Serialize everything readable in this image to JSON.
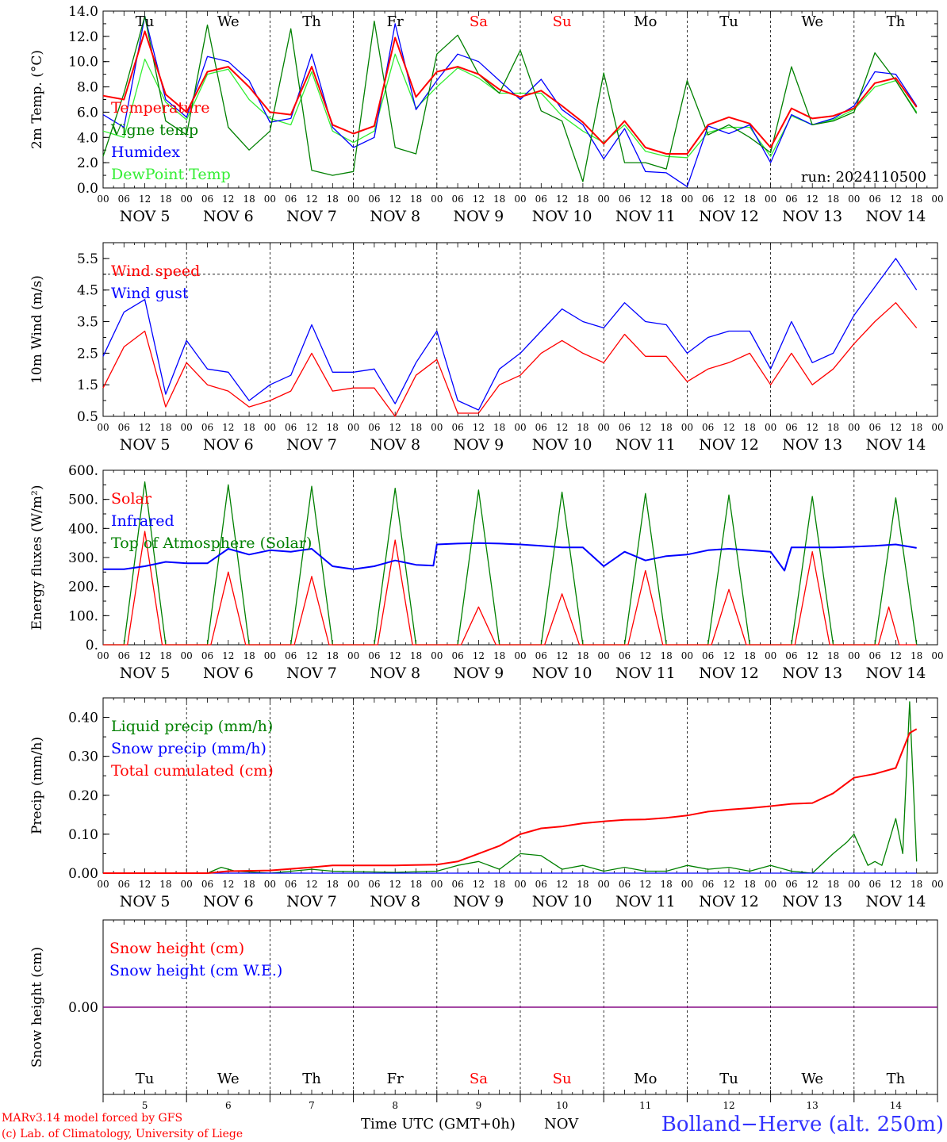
{
  "day_names": [
    {
      "label": "Tu",
      "color": "#000000"
    },
    {
      "label": "We",
      "color": "#000000"
    },
    {
      "label": "Th",
      "color": "#000000"
    },
    {
      "label": "Fr",
      "color": "#000000"
    },
    {
      "label": "Sa",
      "color": "#ff0000"
    },
    {
      "label": "Su",
      "color": "#ff0000"
    },
    {
      "label": "Mo",
      "color": "#000000"
    },
    {
      "label": "Tu",
      "color": "#000000"
    },
    {
      "label": "We",
      "color": "#000000"
    },
    {
      "label": "Th",
      "color": "#000000"
    }
  ],
  "date_labels": [
    "NOV  5",
    "NOV  6",
    "NOV  7",
    "NOV  8",
    "NOV  9",
    "NOV 10",
    "NOV 11",
    "NOV 12",
    "NOV 13",
    "NOV 14"
  ],
  "hour_labels": [
    "00",
    "06",
    "12",
    "18"
  ],
  "day_numbers": [
    "5",
    "6",
    "7",
    "8",
    "9",
    "10",
    "11",
    "12",
    "13",
    "14"
  ],
  "footer": {
    "model_line": "MARv3.14 model forced by GFS",
    "credit_line": "(c) Lab. of Climatology, University of Liege",
    "xaxis_label": "Time UTC (GMT+0h)",
    "month": "NOV",
    "station": "Bolland−Herve (alt. 250m)"
  },
  "colors": {
    "red": "#ff0000",
    "green": "#008000",
    "blue": "#0000ff",
    "lightgreen": "#33ee33",
    "purple": "#800080",
    "grid": "#000000"
  },
  "chart_data": [
    {
      "type": "line",
      "ylabel": "2m Temp. (°C)",
      "ylim": [
        0,
        14
      ],
      "yticks": [
        "0.0",
        "2.0",
        "4.0",
        "6.0",
        "8.0",
        "10.0",
        "12.0",
        "14.0"
      ],
      "x_unit": "hours since NOV 5 00 UTC",
      "annotation": "run: 2024110500",
      "legend_position": "top-left",
      "series": [
        {
          "name": "Temperature",
          "color": "#ff0000",
          "x": [
            0,
            6,
            12,
            18,
            24,
            30,
            36,
            42,
            48,
            54,
            60,
            66,
            72,
            78,
            84,
            90,
            96,
            102,
            108,
            114,
            120,
            126,
            132,
            138,
            144,
            150,
            156,
            162,
            168,
            174,
            180,
            186,
            192,
            198,
            204,
            210,
            216,
            222,
            228,
            234
          ],
          "y": [
            7.3,
            7.0,
            12.4,
            7.4,
            6.0,
            9.2,
            9.6,
            8.0,
            6.0,
            5.8,
            9.6,
            5.0,
            4.3,
            4.9,
            11.9,
            7.2,
            9.2,
            9.6,
            9.0,
            7.8,
            7.2,
            7.7,
            6.5,
            5.2,
            3.5,
            5.3,
            3.2,
            2.7,
            2.7,
            5.0,
            5.6,
            5.1,
            3.2,
            6.3,
            5.5,
            5.7,
            6.3,
            8.3,
            8.7,
            6.4
          ]
        },
        {
          "name": "Vigne temp",
          "color": "#008000",
          "x": [
            0,
            6,
            12,
            18,
            24,
            30,
            36,
            42,
            48,
            54,
            60,
            66,
            72,
            78,
            84,
            90,
            96,
            102,
            108,
            114,
            120,
            126,
            132,
            138,
            144,
            150,
            156,
            162,
            168,
            174,
            180,
            186,
            192,
            198,
            204,
            210,
            216,
            222,
            228,
            234
          ],
          "y": [
            2.5,
            7.5,
            13.6,
            5.3,
            4.2,
            12.9,
            4.8,
            3.0,
            4.5,
            12.6,
            1.4,
            1.0,
            1.3,
            13.2,
            3.2,
            2.7,
            10.6,
            12.1,
            9.0,
            7.5,
            10.9,
            6.1,
            5.3,
            0.5,
            9.1,
            2.0,
            2.0,
            1.5,
            8.5,
            4.2,
            5.0,
            4.0,
            2.8,
            9.6,
            5.0,
            5.3,
            6.0,
            10.7,
            8.5,
            5.9
          ]
        },
        {
          "name": "Humidex",
          "color": "#0000ff",
          "x": [
            0,
            6,
            12,
            18,
            24,
            30,
            36,
            42,
            48,
            54,
            60,
            66,
            72,
            78,
            84,
            90,
            96,
            102,
            108,
            114,
            120,
            126,
            132,
            138,
            144,
            150,
            156,
            162,
            168,
            174,
            180,
            186,
            192,
            198,
            204,
            210,
            216,
            222,
            228,
            234
          ],
          "y": [
            5.8,
            4.8,
            13.6,
            7.0,
            5.6,
            10.4,
            10.0,
            8.5,
            5.2,
            5.5,
            10.6,
            4.8,
            3.2,
            4.0,
            13.0,
            6.2,
            8.5,
            10.6,
            10.0,
            8.5,
            7.0,
            8.6,
            6.2,
            5.0,
            2.3,
            4.7,
            1.3,
            1.2,
            0.1,
            4.9,
            4.3,
            5.0,
            2.0,
            5.8,
            5.0,
            5.5,
            6.5,
            9.2,
            9.0,
            6.5
          ]
        },
        {
          "name": "DewPoint Temp",
          "color": "#33ee33",
          "x": [
            0,
            6,
            12,
            18,
            24,
            30,
            36,
            42,
            48,
            54,
            60,
            66,
            72,
            78,
            84,
            90,
            96,
            102,
            108,
            114,
            120,
            126,
            132,
            138,
            144,
            150,
            156,
            162,
            168,
            174,
            180,
            186,
            192,
            198,
            204,
            210,
            216,
            222,
            228,
            234
          ],
          "y": [
            4.5,
            4.0,
            10.2,
            6.8,
            5.4,
            9.0,
            9.4,
            7.0,
            5.5,
            5.0,
            9.2,
            4.5,
            3.6,
            4.5,
            10.6,
            6.3,
            8.0,
            9.5,
            8.7,
            7.5,
            7.5,
            7.5,
            5.7,
            4.5,
            3.6,
            5.0,
            2.9,
            2.5,
            2.4,
            4.4,
            4.8,
            4.8,
            2.5,
            5.7,
            5.0,
            5.4,
            6.2,
            8.0,
            8.5,
            6.0
          ]
        }
      ]
    },
    {
      "type": "line",
      "ylabel": "10m Wind (m/s)",
      "ylim": [
        0.5,
        6.0
      ],
      "yticks": [
        "0.5",
        "1.5",
        "2.5",
        "3.5",
        "4.5",
        "5.5"
      ],
      "x_unit": "hours since NOV 5 00 UTC",
      "reference_line": 5.0,
      "legend_position": "top-left",
      "series": [
        {
          "name": "Wind speed",
          "color": "#ff0000",
          "x": [
            0,
            6,
            12,
            18,
            24,
            30,
            36,
            42,
            48,
            54,
            60,
            66,
            72,
            78,
            84,
            90,
            96,
            102,
            108,
            114,
            120,
            126,
            132,
            138,
            144,
            150,
            156,
            162,
            168,
            174,
            180,
            186,
            192,
            198,
            204,
            210,
            216,
            222,
            228,
            234
          ],
          "y": [
            1.4,
            2.7,
            3.2,
            0.8,
            2.2,
            1.5,
            1.3,
            0.8,
            1.0,
            1.3,
            2.5,
            1.3,
            1.4,
            1.4,
            0.5,
            1.8,
            2.3,
            0.6,
            0.6,
            1.5,
            1.8,
            2.5,
            2.9,
            2.5,
            2.2,
            3.1,
            2.4,
            2.4,
            1.6,
            2.0,
            2.2,
            2.5,
            1.5,
            2.5,
            1.5,
            2.0,
            2.8,
            3.5,
            4.1,
            3.3
          ]
        },
        {
          "name": "Wind gust",
          "color": "#0000ff",
          "x": [
            0,
            6,
            12,
            18,
            24,
            30,
            36,
            42,
            48,
            54,
            60,
            66,
            72,
            78,
            84,
            90,
            96,
            102,
            108,
            114,
            120,
            126,
            132,
            138,
            144,
            150,
            156,
            162,
            168,
            174,
            180,
            186,
            192,
            198,
            204,
            210,
            216,
            222,
            228,
            234
          ],
          "y": [
            2.4,
            3.8,
            4.2,
            1.2,
            2.9,
            2.0,
            1.9,
            1.0,
            1.5,
            1.8,
            3.4,
            1.9,
            1.9,
            2.0,
            0.9,
            2.2,
            3.2,
            1.0,
            0.7,
            2.0,
            2.5,
            3.2,
            3.9,
            3.5,
            3.3,
            4.1,
            3.5,
            3.4,
            2.5,
            3.0,
            3.2,
            3.2,
            2.0,
            3.5,
            2.2,
            2.5,
            3.7,
            4.6,
            5.5,
            4.5
          ]
        }
      ]
    },
    {
      "type": "line",
      "ylabel": "Energy fluxes (W/m²)",
      "ylim": [
        0,
        600
      ],
      "yticks": [
        "0.",
        "100.",
        "200.",
        "300.",
        "400.",
        "500.",
        "600."
      ],
      "x_unit": "hours since NOV 5 00 UTC",
      "legend_position": "top-left",
      "series": [
        {
          "name": "Solar",
          "color": "#ff0000",
          "x": [
            0,
            7,
            12,
            17,
            24,
            31,
            36,
            41,
            48,
            55,
            60,
            65,
            72,
            79,
            84,
            89,
            96,
            103,
            108,
            113,
            120,
            127,
            132,
            137,
            144,
            151,
            156,
            161,
            168,
            175,
            180,
            185,
            192,
            199,
            204,
            209,
            216,
            223,
            226,
            229,
            234
          ],
          "y": [
            0,
            0,
            390,
            0,
            0,
            0,
            250,
            0,
            0,
            0,
            235,
            0,
            0,
            0,
            360,
            0,
            0,
            0,
            130,
            0,
            0,
            0,
            175,
            0,
            0,
            0,
            255,
            0,
            0,
            0,
            190,
            0,
            0,
            0,
            320,
            0,
            0,
            0,
            130,
            0,
            0
          ]
        },
        {
          "name": "Infrared",
          "color": "#0000ff",
          "x": [
            0,
            6,
            12,
            18,
            24,
            30,
            36,
            42,
            48,
            54,
            60,
            66,
            72,
            78,
            84,
            90,
            95,
            96,
            102,
            108,
            114,
            120,
            126,
            132,
            138,
            144,
            150,
            156,
            162,
            168,
            174,
            180,
            186,
            192,
            196,
            198,
            204,
            210,
            216,
            222,
            228,
            234
          ],
          "y": [
            260,
            260,
            270,
            285,
            280,
            280,
            330,
            310,
            325,
            320,
            330,
            270,
            260,
            270,
            290,
            275,
            272,
            345,
            348,
            350,
            348,
            345,
            340,
            335,
            335,
            270,
            320,
            290,
            305,
            310,
            325,
            330,
            325,
            320,
            255,
            335,
            335,
            335,
            337,
            340,
            345,
            333
          ]
        },
        {
          "name": "Top of Atmosphere (Solar)",
          "color": "#008000",
          "x": [
            0,
            6,
            12,
            18,
            24,
            30,
            36,
            42,
            48,
            54,
            60,
            66,
            72,
            78,
            84,
            90,
            96,
            102,
            108,
            114,
            120,
            126,
            132,
            138,
            144,
            150,
            156,
            162,
            168,
            174,
            180,
            186,
            192,
            198,
            204,
            210,
            216,
            222,
            228,
            234
          ],
          "y": [
            0,
            0,
            560,
            0,
            0,
            0,
            550,
            0,
            0,
            0,
            545,
            0,
            0,
            0,
            538,
            0,
            0,
            0,
            532,
            0,
            0,
            0,
            525,
            0,
            0,
            0,
            520,
            0,
            0,
            0,
            515,
            0,
            0,
            0,
            510,
            0,
            0,
            0,
            505,
            0
          ]
        }
      ]
    },
    {
      "type": "line",
      "ylabel": "Precip (mm/h)",
      "ylim": [
        0,
        0.45
      ],
      "yticks": [
        "0.00",
        "0.10",
        "0.20",
        "0.30",
        "0.40"
      ],
      "x_unit": "hours since NOV 5 00 UTC",
      "legend_position": "top-left",
      "series": [
        {
          "name": "Liquid precip (mm/h)",
          "color": "#008000",
          "x": [
            0,
            30,
            34,
            38,
            48,
            60,
            66,
            84,
            96,
            102,
            108,
            114,
            120,
            126,
            132,
            138,
            144,
            150,
            156,
            162,
            168,
            174,
            180,
            186,
            192,
            198,
            204,
            210,
            214,
            216,
            220,
            222,
            224,
            228,
            230,
            232,
            234
          ],
          "y": [
            0,
            0,
            0.015,
            0.005,
            0,
            0.01,
            0.005,
            0.002,
            0.005,
            0.02,
            0.03,
            0.01,
            0.05,
            0.045,
            0.01,
            0.02,
            0.005,
            0.015,
            0.005,
            0.005,
            0.02,
            0.01,
            0.015,
            0.005,
            0.02,
            0.005,
            0.0,
            0.05,
            0.08,
            0.1,
            0.02,
            0.03,
            0.02,
            0.14,
            0.05,
            0.44,
            0.03
          ]
        },
        {
          "name": "Snow precip (mm/h)",
          "color": "#0000ff",
          "x": [
            0,
            234
          ],
          "y": [
            0,
            0
          ]
        },
        {
          "name": "Total cumulated (cm)",
          "color": "#ff0000",
          "x": [
            0,
            30,
            36,
            48,
            60,
            66,
            84,
            96,
            102,
            108,
            114,
            120,
            126,
            132,
            138,
            144,
            150,
            156,
            162,
            168,
            174,
            180,
            186,
            192,
            198,
            204,
            210,
            216,
            222,
            228,
            232,
            234
          ],
          "y": [
            0,
            0,
            0.005,
            0.007,
            0.015,
            0.02,
            0.02,
            0.022,
            0.03,
            0.05,
            0.07,
            0.1,
            0.115,
            0.12,
            0.128,
            0.133,
            0.137,
            0.138,
            0.142,
            0.148,
            0.158,
            0.163,
            0.167,
            0.172,
            0.178,
            0.18,
            0.205,
            0.245,
            0.255,
            0.27,
            0.36,
            0.37
          ]
        }
      ]
    },
    {
      "type": "line",
      "ylabel": "Snow height (cm)",
      "ylim": [
        -1,
        1
      ],
      "yticks": [
        "0.00"
      ],
      "x_unit": "hours since NOV 5 00 UTC",
      "legend_position": "top-left",
      "series": [
        {
          "name": "Snow height (cm)",
          "color": "#ff0000",
          "x": [
            0,
            240
          ],
          "y": [
            0,
            0
          ]
        },
        {
          "name": "Snow height (cm W.E.)",
          "color": "#0000ff",
          "x": [
            0,
            240
          ],
          "y": [
            0,
            0
          ]
        }
      ]
    }
  ]
}
